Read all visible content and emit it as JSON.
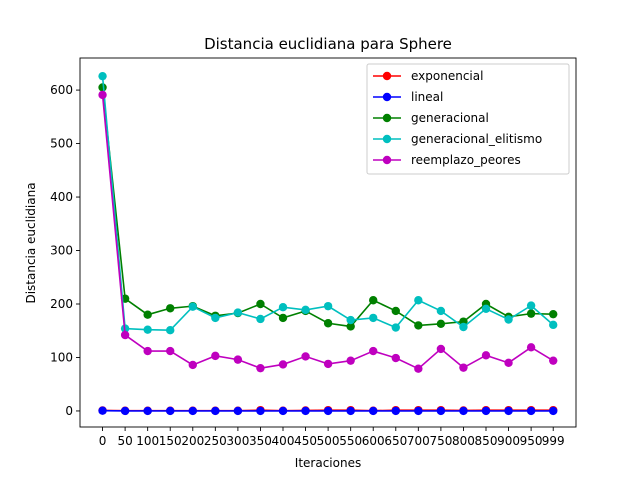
{
  "chart_data": {
    "type": "line",
    "title": "Distancia euclidiana para Sphere",
    "xlabel": "Iteraciones",
    "ylabel": "Distancia euclidiana",
    "x": [
      0,
      50,
      100,
      150,
      200,
      250,
      300,
      350,
      400,
      450,
      500,
      550,
      600,
      650,
      700,
      750,
      800,
      850,
      900,
      950,
      999
    ],
    "xticks": [
      "0",
      "50",
      "100",
      "150",
      "200",
      "250",
      "300",
      "350",
      "400",
      "450",
      "500",
      "550",
      "600",
      "650",
      "700",
      "750",
      "800",
      "850",
      "900",
      "950",
      "999"
    ],
    "yticks": [
      0,
      100,
      200,
      300,
      400,
      500,
      600
    ],
    "ylim": [
      -30,
      660
    ],
    "legend_position": "top-right",
    "grid": false,
    "series": [
      {
        "name": "exponencial",
        "color": "#ff0000",
        "values": [
          1,
          0.5,
          0.5,
          0.5,
          0.5,
          0.5,
          0.5,
          1.5,
          0.5,
          1,
          1.5,
          1.5,
          0.5,
          1.5,
          1.5,
          1.5,
          1,
          1.5,
          1.5,
          1.5,
          1.5
        ]
      },
      {
        "name": "lineal",
        "color": "#0000ff",
        "values": [
          0.5,
          0,
          0,
          0,
          0,
          0,
          0,
          0,
          0,
          0,
          0,
          0,
          0,
          0,
          0,
          0,
          0,
          0,
          0,
          0,
          0
        ]
      },
      {
        "name": "generacional",
        "color": "#008000",
        "values": [
          605,
          210,
          180,
          192,
          196,
          178,
          183,
          200,
          174,
          187,
          164,
          158,
          207,
          187,
          160,
          163,
          167,
          200,
          176,
          182,
          181
        ]
      },
      {
        "name": "generacional_elitismo",
        "color": "#00bfbf",
        "values": [
          626,
          154,
          152,
          151,
          195,
          174,
          184,
          172,
          194,
          189,
          196,
          170,
          174,
          156,
          207,
          187,
          157,
          191,
          171,
          197,
          161
        ]
      },
      {
        "name": "reemplazo_peores",
        "color": "#bf00bf",
        "values": [
          591,
          142,
          112,
          112,
          86,
          103,
          96,
          80,
          87,
          102,
          88,
          94,
          112,
          99,
          79,
          116,
          81,
          104,
          90,
          119,
          94
        ]
      }
    ]
  }
}
